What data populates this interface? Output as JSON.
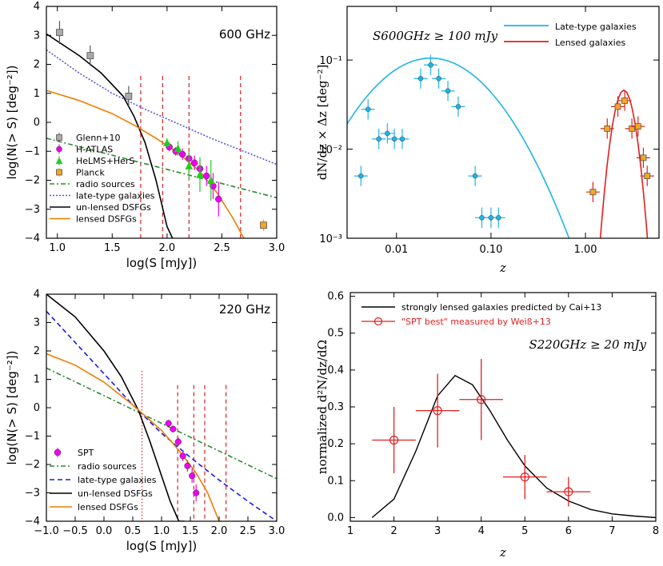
{
  "chart_data": [
    {
      "type": "line",
      "panel": "top-left",
      "title": "600 GHz",
      "xlabel": "log(S [mJy])",
      "ylabel": "log(N(> S) [deg⁻²])",
      "xlim": [
        0.9,
        3.0
      ],
      "ylim": [
        -4,
        4
      ],
      "xticks": [
        "1.0",
        "1.5",
        "2.0",
        "2.5",
        "3.0"
      ],
      "yticks": [
        "−4",
        "−3",
        "−2",
        "−1",
        "0",
        "1",
        "2",
        "3",
        "4"
      ],
      "series": [
        {
          "name": "radio sources",
          "color": "#2e8b2e",
          "style": "dashdot",
          "x": [
            0.9,
            3.0
          ],
          "y": [
            -0.55,
            -2.6
          ]
        },
        {
          "name": "late-type galaxies",
          "color": "#5555dd",
          "style": "dotted",
          "x": [
            0.9,
            1.2,
            1.5,
            1.8,
            2.1,
            2.4,
            2.7,
            3.0
          ],
          "y": [
            2.5,
            1.7,
            1.0,
            0.45,
            -0.05,
            -0.55,
            -1.0,
            -1.45
          ]
        },
        {
          "name": "un-lensed DSFGs",
          "color": "#000000",
          "style": "solid",
          "x": [
            0.9,
            1.2,
            1.4,
            1.6,
            1.7,
            1.8,
            1.9,
            1.95,
            2.0,
            2.05
          ],
          "y": [
            3.05,
            2.3,
            1.7,
            0.9,
            0.2,
            -0.7,
            -2.0,
            -2.8,
            -3.6,
            -4.0
          ]
        },
        {
          "name": "lensed DSFGs",
          "color": "#ee7d00",
          "style": "solid",
          "x": [
            0.9,
            1.2,
            1.5,
            1.7,
            1.9,
            2.1,
            2.3,
            2.45,
            2.6,
            2.7
          ],
          "y": [
            1.1,
            0.75,
            0.3,
            -0.1,
            -0.55,
            -1.05,
            -1.7,
            -2.4,
            -3.3,
            -4.0
          ]
        }
      ],
      "points": [
        {
          "name": "Glenn+10",
          "color": "#aaaaaa",
          "marker": "square",
          "x": [
            1.02,
            1.3,
            1.65
          ],
          "y": [
            3.1,
            2.3,
            0.9
          ],
          "err": [
            0.4,
            0.35,
            0.35
          ]
        },
        {
          "name": "H-ATLAS",
          "color": "#ee00ee",
          "marker": "circle",
          "x": [
            2.02,
            2.08,
            2.14,
            2.2,
            2.25,
            2.3,
            2.36,
            2.42,
            2.47
          ],
          "y": [
            -0.85,
            -1.0,
            -1.1,
            -1.25,
            -1.4,
            -1.6,
            -1.85,
            -2.2,
            -2.65
          ],
          "err": [
            0.15,
            0.15,
            0.2,
            0.2,
            0.25,
            0.3,
            0.35,
            0.45,
            0.6
          ]
        },
        {
          "name": "HeLMS+HerS",
          "color": "#22cc22",
          "marker": "triangle",
          "x": [
            2.0,
            2.1,
            2.2,
            2.3,
            2.4
          ],
          "y": [
            -0.7,
            -0.9,
            -1.5,
            -1.8,
            -2.0
          ],
          "err": [
            0.15,
            0.25,
            0.5,
            0.6,
            0.7
          ]
        },
        {
          "name": "Planck",
          "color": "#f5a623",
          "marker": "square",
          "x": [
            2.88
          ],
          "y": [
            -3.55
          ],
          "err": [
            0.2
          ]
        }
      ],
      "vlines": [
        1.76,
        1.96,
        2.2,
        2.67
      ]
    },
    {
      "type": "scatter",
      "panel": "top-right",
      "title": "S600GHz ≥ 100 mJy",
      "xlabel": "z",
      "ylabel": "dN/dz × Δz [deg⁻²]",
      "xscale": "log",
      "yscale": "log",
      "xlim": [
        0.003,
        6
      ],
      "ylim": [
        0.001,
        0.4
      ],
      "xticks": [
        "0.01",
        "0.10",
        "1.00"
      ],
      "yticks": [
        "10⁻³",
        "10⁻²",
        "10⁻¹"
      ],
      "legend": [
        "Late-type galaxies",
        "Lensed galaxies"
      ],
      "series": [
        {
          "name": "Late-type galaxies",
          "color": "#1fb4e8",
          "model": "lognormal",
          "peak_x": 0.023,
          "peak_y": 0.105,
          "width_dex": 0.48
        },
        {
          "name": "Lensed galaxies",
          "color": "#e01f1f",
          "model": "lognormal",
          "peak_x": 2.55,
          "peak_y": 0.046,
          "width_dex": 0.09
        }
      ],
      "points": [
        {
          "name": "Late-type galaxies data",
          "color": "#1fb4e8",
          "x": [
            0.0042,
            0.005,
            0.0065,
            0.008,
            0.0095,
            0.0115,
            0.018,
            0.023,
            0.028,
            0.035,
            0.045,
            0.068,
            0.08,
            0.1,
            0.12
          ],
          "y": [
            0.005,
            0.028,
            0.013,
            0.015,
            0.013,
            0.013,
            0.062,
            0.088,
            0.062,
            0.045,
            0.03,
            0.005,
            0.0017,
            0.0017,
            0.0017
          ]
        },
        {
          "name": "Lensed galaxies data",
          "color": "#f5a623",
          "x": [
            1.2,
            1.7,
            2.2,
            2.6,
            3.1,
            3.6,
            4.1,
            4.5
          ],
          "y": [
            0.0033,
            0.017,
            0.03,
            0.035,
            0.017,
            0.018,
            0.008,
            0.005
          ]
        }
      ]
    },
    {
      "type": "line",
      "panel": "bottom-left",
      "title": "220 GHz",
      "xlabel": "log(S [mJy])",
      "ylabel": "log(N(> S) [deg⁻²])",
      "xlim": [
        -1.0,
        3.0
      ],
      "ylim": [
        -4,
        4
      ],
      "xticks": [
        "−1.0",
        "−0.5",
        "0.0",
        "0.5",
        "1.0",
        "1.5",
        "2.0",
        "2.5",
        "3.0"
      ],
      "yticks": [
        "−4",
        "−3",
        "−2",
        "−1",
        "0",
        "1",
        "2",
        "3",
        "4"
      ],
      "series": [
        {
          "name": "radio sources",
          "color": "#2e8b2e",
          "style": "dashdot",
          "x": [
            -1.0,
            3.0
          ],
          "y": [
            1.4,
            -2.5
          ]
        },
        {
          "name": "late-type galaxies",
          "color": "#1a1ae6",
          "style": "dashed",
          "x": [
            -1.0,
            -0.5,
            0.0,
            0.5,
            1.0,
            1.5,
            2.0,
            2.5,
            3.0
          ],
          "y": [
            3.4,
            2.3,
            1.2,
            0.1,
            -0.9,
            -1.75,
            -2.55,
            -3.3,
            -4.0
          ]
        },
        {
          "name": "un-lensed DSFGs",
          "color": "#000000",
          "style": "solid",
          "x": [
            -1.0,
            -0.5,
            0.0,
            0.3,
            0.6,
            0.8,
            1.0,
            1.15,
            1.3,
            1.4
          ],
          "y": [
            4.0,
            3.2,
            2.0,
            1.1,
            -0.1,
            -1.2,
            -2.4,
            -3.3,
            -4.0,
            -4.0
          ]
        },
        {
          "name": "lensed DSFGs",
          "color": "#ee7d00",
          "style": "solid",
          "x": [
            -1.0,
            -0.5,
            0.0,
            0.5,
            1.0,
            1.3,
            1.6,
            1.8,
            2.0
          ],
          "y": [
            1.9,
            1.5,
            0.9,
            0.1,
            -0.8,
            -1.5,
            -2.3,
            -3.0,
            -4.0
          ]
        }
      ],
      "points": [
        {
          "name": "SPT",
          "color": "#ee00ee",
          "marker": "circle",
          "x": [
            1.12,
            1.2,
            1.29,
            1.37,
            1.45,
            1.53,
            1.6
          ],
          "y": [
            -0.55,
            -0.75,
            -1.2,
            -1.7,
            -2.05,
            -2.4,
            -3.0
          ],
          "err": [
            0.12,
            0.12,
            0.15,
            0.18,
            0.2,
            0.25,
            0.3
          ]
        }
      ],
      "vlines": [
        0.66,
        1.28,
        1.56,
        1.75,
        2.12
      ]
    },
    {
      "type": "line",
      "panel": "bottom-right",
      "title": "S220GHz ≥ 20 mJy",
      "xlabel": "z",
      "ylabel": "normalized d²N/dz/dΩ",
      "xlim": [
        1,
        8
      ],
      "ylim": [
        -0.01,
        0.61
      ],
      "xticks": [
        "1",
        "2",
        "3",
        "4",
        "5",
        "6",
        "7",
        "8"
      ],
      "yticks": [
        "0.0",
        "0.1",
        "0.2",
        "0.3",
        "0.4",
        "0.5",
        "0.6"
      ],
      "legend": [
        "strongly lensed galaxies predicted by Cai+13",
        "\"SPT best\" measured by Weiß+13"
      ],
      "series": [
        {
          "name": "strongly lensed galaxies predicted by Cai+13",
          "color": "#000000",
          "x": [
            1.5,
            2.0,
            2.5,
            3.0,
            3.4,
            3.8,
            4.2,
            4.6,
            5.0,
            5.5,
            6.0,
            6.5,
            7.0,
            7.5,
            8.0
          ],
          "y": [
            0.0,
            0.05,
            0.18,
            0.33,
            0.385,
            0.36,
            0.29,
            0.21,
            0.14,
            0.08,
            0.045,
            0.022,
            0.01,
            0.004,
            0.0
          ]
        }
      ],
      "points": [
        {
          "name": "\"SPT best\" measured by Weiß+13",
          "color": "#e01f1f",
          "x": [
            2,
            3,
            4,
            5,
            6
          ],
          "y": [
            0.21,
            0.29,
            0.32,
            0.11,
            0.07
          ],
          "xerr": [
            0.5,
            0.5,
            0.5,
            0.5,
            0.5
          ],
          "yerr": [
            0.09,
            0.1,
            0.11,
            0.06,
            0.04
          ]
        }
      ]
    }
  ]
}
